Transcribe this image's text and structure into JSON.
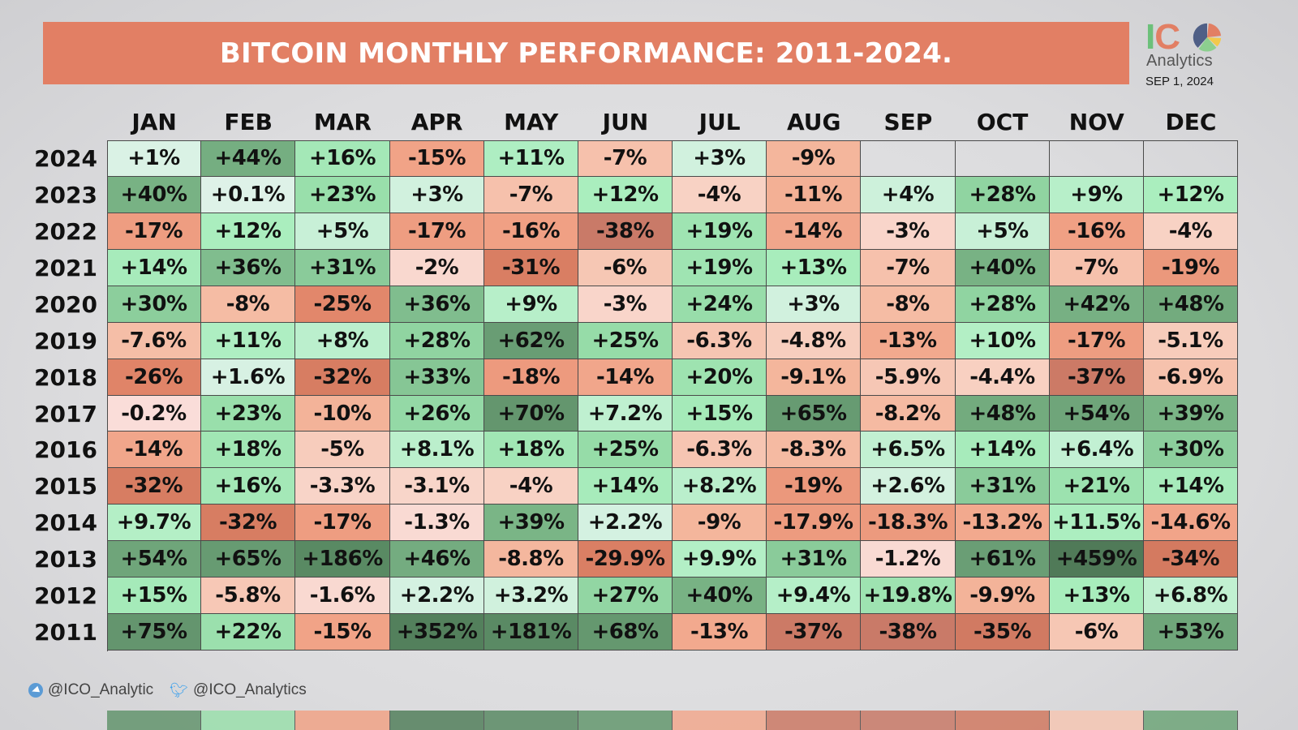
{
  "header": {
    "title": "BITCOIN MONTHLY PERFORMANCE: 2011-2024.",
    "logo_top": "ICO",
    "logo_word": "Analytics",
    "date": "SEP  1, 2024"
  },
  "footer": {
    "telegram_icon": "telegram-icon",
    "telegram_handle": "@ICO_Analytic",
    "twitter_icon": "twitter-bird-icon",
    "twitter_handle": "@ICO_Analytics"
  },
  "colors": {
    "banner": "#e27f64",
    "logo_green": "#6cc07a",
    "logo_orange": "#e27f64",
    "logo_navy": "#4f5f86",
    "logo_yellow": "#f2c94c"
  },
  "chart_data": {
    "type": "heatmap",
    "title": "BITCOIN MONTHLY PERFORMANCE: 2011-2024.",
    "xlabel": "",
    "ylabel": "",
    "columns": [
      "JAN",
      "FEB",
      "MAR",
      "APR",
      "MAY",
      "JUN",
      "JUL",
      "AUG",
      "SEP",
      "OCT",
      "NOV",
      "DEC"
    ],
    "rows": [
      {
        "year": "2024",
        "labels": [
          "+1%",
          "+44%",
          "+16%",
          "-15%",
          "+11%",
          "-7%",
          "+3%",
          "-9%",
          "",
          "",
          "",
          ""
        ],
        "values": [
          1,
          44,
          16,
          -15,
          11,
          -7,
          3,
          -9,
          null,
          null,
          null,
          null
        ]
      },
      {
        "year": "2023",
        "labels": [
          "+40%",
          "+0.1%",
          "+23%",
          "+3%",
          "-7%",
          "+12%",
          "-4%",
          "-11%",
          "+4%",
          "+28%",
          "+9%",
          "+12%"
        ],
        "values": [
          40,
          0.1,
          23,
          3,
          -7,
          12,
          -4,
          -11,
          4,
          28,
          9,
          12
        ]
      },
      {
        "year": "2022",
        "labels": [
          "-17%",
          "+12%",
          "+5%",
          "-17%",
          "-16%",
          "-38%",
          "+19%",
          "-14%",
          "-3%",
          "+5%",
          "-16%",
          "-4%"
        ],
        "values": [
          -17,
          12,
          5,
          -17,
          -16,
          -38,
          19,
          -14,
          -3,
          5,
          -16,
          -4
        ]
      },
      {
        "year": "2021",
        "labels": [
          "+14%",
          "+36%",
          "+31%",
          "-2%",
          "-31%",
          "-6%",
          "+19%",
          "+13%",
          "-7%",
          "+40%",
          "-7%",
          "-19%"
        ],
        "values": [
          14,
          36,
          31,
          -2,
          -31,
          -6,
          19,
          13,
          -7,
          40,
          -7,
          -19
        ]
      },
      {
        "year": "2020",
        "labels": [
          "+30%",
          "-8%",
          "-25%",
          "+36%",
          "+9%",
          "-3%",
          "+24%",
          "+3%",
          "-8%",
          "+28%",
          "+42%",
          "+48%"
        ],
        "values": [
          30,
          -8,
          -25,
          36,
          9,
          -3,
          24,
          3,
          -8,
          28,
          42,
          48
        ]
      },
      {
        "year": "2019",
        "labels": [
          "-7.6%",
          "+11%",
          "+8%",
          "+28%",
          "+62%",
          "+25%",
          "-6.3%",
          "-4.8%",
          "-13%",
          "+10%",
          "-17%",
          "-5.1%"
        ],
        "values": [
          -7.6,
          11,
          8,
          28,
          62,
          25,
          -6.3,
          -4.8,
          -13,
          10,
          -17,
          -5.1
        ]
      },
      {
        "year": "2018",
        "labels": [
          "-26%",
          "+1.6%",
          "-32%",
          "+33%",
          "-18%",
          "-14%",
          "+20%",
          "-9.1%",
          "-5.9%",
          "-4.4%",
          "-37%",
          "-6.9%"
        ],
        "values": [
          -26,
          1.6,
          -32,
          33,
          -18,
          -14,
          20,
          -9.1,
          -5.9,
          -4.4,
          -37,
          -6.9
        ]
      },
      {
        "year": "2017",
        "labels": [
          "-0.2%",
          "+23%",
          "-10%",
          "+26%",
          "+70%",
          "+7.2%",
          "+15%",
          "+65%",
          "-8.2%",
          "+48%",
          "+54%",
          "+39%"
        ],
        "values": [
          -0.2,
          23,
          -10,
          26,
          70,
          7.2,
          15,
          65,
          -8.2,
          48,
          54,
          39
        ]
      },
      {
        "year": "2016",
        "labels": [
          "-14%",
          "+18%",
          "-5%",
          "+8.1%",
          "+18%",
          "+25%",
          "-6.3%",
          "-8.3%",
          "+6.5%",
          "+14%",
          "+6.4%",
          "+30%"
        ],
        "values": [
          -14,
          18,
          -5,
          8.1,
          18,
          25,
          -6.3,
          -8.3,
          6.5,
          14,
          6.4,
          30
        ]
      },
      {
        "year": "2015",
        "labels": [
          "-32%",
          "+16%",
          "-3.3%",
          "-3.1%",
          "-4%",
          "+14%",
          "+8.2%",
          "-19%",
          "+2.6%",
          "+31%",
          "+21%",
          "+14%"
        ],
        "values": [
          -32,
          16,
          -3.3,
          -3.1,
          -4,
          14,
          8.2,
          -19,
          2.6,
          31,
          21,
          14
        ]
      },
      {
        "year": "2014",
        "labels": [
          "+9.7%",
          "-32%",
          "-17%",
          "-1.3%",
          "+39%",
          "+2.2%",
          "-9%",
          "-17.9%",
          "-18.3%",
          "-13.2%",
          "+11.5%",
          "-14.6%"
        ],
        "values": [
          9.7,
          -32,
          -17,
          -1.3,
          39,
          2.2,
          -9,
          -17.9,
          -18.3,
          -13.2,
          11.5,
          -14.6
        ]
      },
      {
        "year": "2013",
        "labels": [
          "+54%",
          "+65%",
          "+186%",
          "+46%",
          "-8.8%",
          "-29.9%",
          "+9.9%",
          "+31%",
          "-1.2%",
          "+61%",
          "+459%",
          "-34%"
        ],
        "values": [
          54,
          65,
          186,
          46,
          -8.8,
          -29.9,
          9.9,
          31,
          -1.2,
          61,
          459,
          -34
        ]
      },
      {
        "year": "2012",
        "labels": [
          "+15%",
          "-5.8%",
          "-1.6%",
          "+2.2%",
          "+3.2%",
          "+27%",
          "+40%",
          "+9.4%",
          "+19.8%",
          "-9.9%",
          "+13%",
          "+6.8%"
        ],
        "values": [
          15,
          -5.8,
          -1.6,
          2.2,
          3.2,
          27,
          40,
          9.4,
          19.8,
          -9.9,
          13,
          6.8
        ]
      },
      {
        "year": "2011",
        "labels": [
          "+75%",
          "+22%",
          "-15%",
          "+352%",
          "+181%",
          "+68%",
          "-13%",
          "-37%",
          "-38%",
          "-35%",
          "-6%",
          "+53%"
        ],
        "values": [
          75,
          22,
          -15,
          352,
          181,
          68,
          -13,
          -37,
          -38,
          -35,
          -6,
          53
        ]
      }
    ]
  }
}
